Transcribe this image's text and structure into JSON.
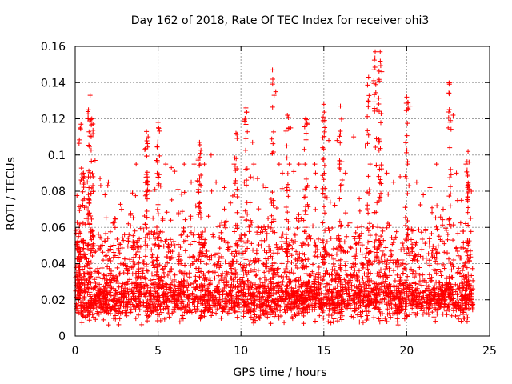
{
  "chart_data": {
    "type": "scatter",
    "title": "Day 162 of 2018, Rate Of TEC Index for receiver ohi3",
    "xlabel": "GPS time / hours",
    "ylabel": "ROTI / TECUs",
    "xlim": [
      0,
      25
    ],
    "ylim": [
      0,
      0.16
    ],
    "x_ticks": [
      0,
      5,
      10,
      15,
      20,
      25
    ],
    "x_tick_labels": [
      "0",
      "5",
      "10",
      "15",
      "20",
      "25"
    ],
    "y_ticks": [
      0,
      0.02,
      0.04,
      0.06,
      0.08,
      0.1,
      0.12,
      0.14,
      0.16
    ],
    "y_tick_labels": [
      "0",
      "0.02",
      "0.04",
      "0.06",
      "0.08",
      "0.1",
      "0.12",
      "0.14",
      "0.16"
    ],
    "grid": true,
    "marker": "+",
    "color": "#ff0000",
    "series": [
      {
        "data_description": "dense ROTI samples from 0 to 24 h",
        "points": [
          [
            0.2,
            0.055
          ],
          [
            0.3,
            0.115
          ],
          [
            0.35,
            0.117
          ],
          [
            0.5,
            0.09
          ],
          [
            0.8,
            0.125
          ],
          [
            0.9,
            0.133
          ],
          [
            1.0,
            0.12
          ],
          [
            1.2,
            0.097
          ],
          [
            1.5,
            0.087
          ],
          [
            1.8,
            0.078
          ],
          [
            2.0,
            0.085
          ],
          [
            2.4,
            0.065
          ],
          [
            2.8,
            0.07
          ],
          [
            3.2,
            0.062
          ],
          [
            3.6,
            0.058
          ],
          [
            4.2,
            0.103
          ],
          [
            4.3,
            0.113
          ],
          [
            4.4,
            0.11
          ],
          [
            4.5,
            0.08
          ],
          [
            4.9,
            0.097
          ],
          [
            5.0,
            0.118
          ],
          [
            5.8,
            0.093
          ],
          [
            6.0,
            0.091
          ],
          [
            6.2,
            0.081
          ],
          [
            7.0,
            0.085
          ],
          [
            7.5,
            0.107
          ],
          [
            7.8,
            0.095
          ],
          [
            8.2,
            0.1
          ],
          [
            8.5,
            0.085
          ],
          [
            9.0,
            0.082
          ],
          [
            9.7,
            0.112
          ],
          [
            10.2,
            0.085
          ],
          [
            10.3,
            0.126
          ],
          [
            10.7,
            0.107
          ],
          [
            11.0,
            0.087
          ],
          [
            11.5,
            0.082
          ],
          [
            11.9,
            0.147
          ],
          [
            12.0,
            0.133
          ],
          [
            12.1,
            0.135
          ],
          [
            12.5,
            0.09
          ],
          [
            12.8,
            0.122
          ],
          [
            13.0,
            0.115
          ],
          [
            13.5,
            0.095
          ],
          [
            13.9,
            0.12
          ],
          [
            14.0,
            0.117
          ],
          [
            14.5,
            0.09
          ],
          [
            15.0,
            0.128
          ],
          [
            15.3,
            0.108
          ],
          [
            15.8,
            0.108
          ],
          [
            16.0,
            0.127
          ],
          [
            16.3,
            0.09
          ],
          [
            16.8,
            0.11
          ],
          [
            17.5,
            0.105
          ],
          [
            17.7,
            0.143
          ],
          [
            18.1,
            0.157
          ],
          [
            18.2,
            0.125
          ],
          [
            18.4,
            0.157
          ],
          [
            18.5,
            0.146
          ],
          [
            18.8,
            0.09
          ],
          [
            19.2,
            0.085
          ],
          [
            19.6,
            0.088
          ],
          [
            20.0,
            0.132
          ],
          [
            20.2,
            0.127
          ],
          [
            20.6,
            0.085
          ],
          [
            21.0,
            0.078
          ],
          [
            21.4,
            0.082
          ],
          [
            21.8,
            0.095
          ],
          [
            22.2,
            0.07
          ],
          [
            22.5,
            0.115
          ],
          [
            22.6,
            0.14
          ],
          [
            22.8,
            0.122
          ],
          [
            23.0,
            0.09
          ],
          [
            23.3,
            0.075
          ],
          [
            23.7,
            0.102
          ],
          [
            23.9,
            0.08
          ]
        ]
      }
    ]
  }
}
